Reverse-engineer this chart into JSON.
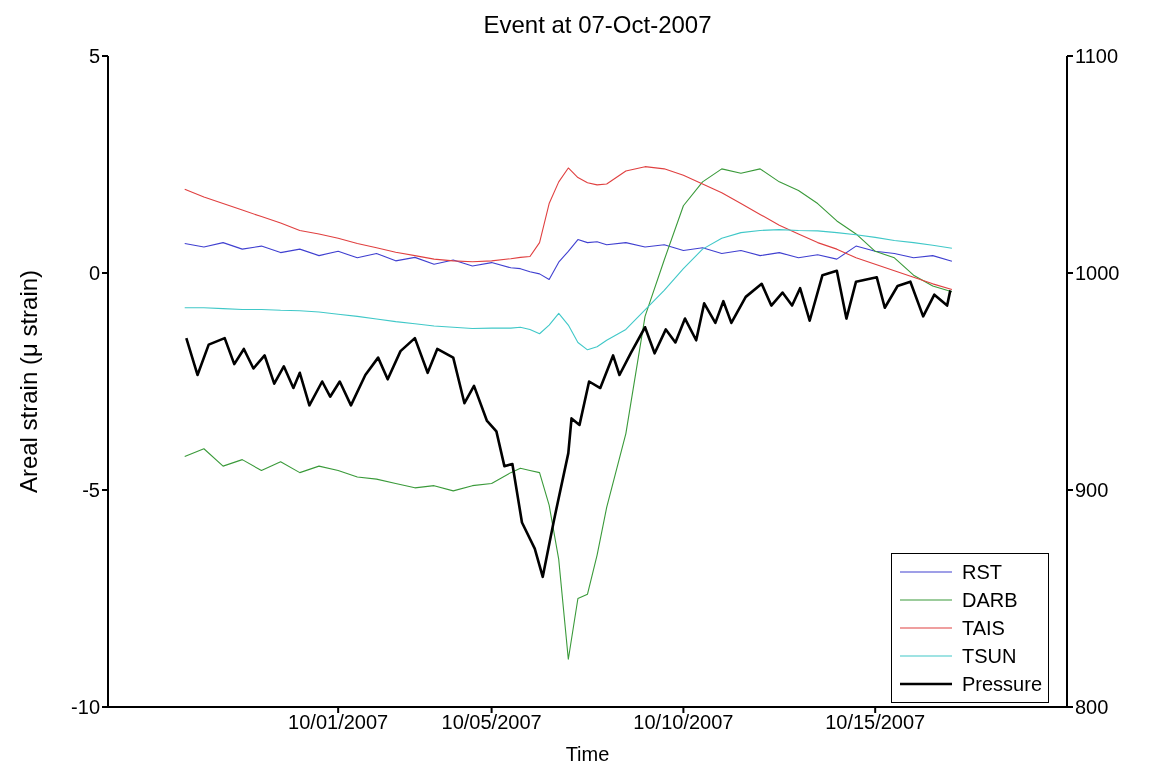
{
  "chart_data": {
    "type": "line",
    "title": "Event at 07-Oct-2007",
    "xlabel": "Time",
    "ylabel": "Areal strain (μ strain)",
    "xlim": [
      "2007-09-25",
      "2007-10-20"
    ],
    "xticks": [
      {
        "value": "2007-10-01",
        "label": "10/01/2007"
      },
      {
        "value": "2007-10-05",
        "label": "10/05/2007"
      },
      {
        "value": "2007-10-10",
        "label": "10/10/2007"
      },
      {
        "value": "2007-10-15",
        "label": "10/15/2007"
      }
    ],
    "ylim": [
      -10,
      5
    ],
    "yticks": [
      -10,
      -5,
      0,
      5
    ],
    "y2lim": [
      800,
      1100
    ],
    "y2ticks": [
      800,
      900,
      1000,
      1100
    ],
    "legend": "bottom right",
    "grid": false,
    "marker": "none",
    "line_style": "solid",
    "x": [
      "2007-09-27T00:00",
      "2007-09-27T12:00",
      "2007-09-28T00:00",
      "2007-09-28T12:00",
      "2007-09-29T00:00",
      "2007-09-29T12:00",
      "2007-09-30T00:00",
      "2007-09-30T12:00",
      "2007-10-01T00:00",
      "2007-10-01T12:00",
      "2007-10-02T00:00",
      "2007-10-02T12:00",
      "2007-10-03T00:00",
      "2007-10-03T12:00",
      "2007-10-04T00:00",
      "2007-10-04T12:00",
      "2007-10-05T00:00",
      "2007-10-05T12:00",
      "2007-10-05T18:00",
      "2007-10-06T00:00",
      "2007-10-06T06:00",
      "2007-10-06T12:00",
      "2007-10-06T18:00",
      "2007-10-07T00:00",
      "2007-10-07T06:00",
      "2007-10-07T12:00",
      "2007-10-07T18:00",
      "2007-10-08T00:00",
      "2007-10-08T12:00",
      "2007-10-09T00:00",
      "2007-10-09T12:00",
      "2007-10-10T00:00",
      "2007-10-10T12:00",
      "2007-10-11T00:00",
      "2007-10-11T12:00",
      "2007-10-12T00:00",
      "2007-10-12T12:00",
      "2007-10-13T00:00",
      "2007-10-13T12:00",
      "2007-10-14T00:00",
      "2007-10-14T12:00",
      "2007-10-15T00:00",
      "2007-10-15T12:00",
      "2007-10-16T00:00",
      "2007-10-16T12:00",
      "2007-10-17T00:00"
    ],
    "series": [
      {
        "name": "RST",
        "color": "#4040d0",
        "values": [
          0.68,
          0.6,
          0.7,
          0.55,
          0.62,
          0.47,
          0.55,
          0.4,
          0.5,
          0.35,
          0.45,
          0.28,
          0.36,
          0.2,
          0.3,
          0.16,
          0.24,
          0.12,
          0.1,
          0.03,
          -0.02,
          -0.15,
          0.25,
          0.5,
          0.77,
          0.7,
          0.72,
          0.65,
          0.7,
          0.6,
          0.65,
          0.52,
          0.58,
          0.45,
          0.52,
          0.4,
          0.47,
          0.35,
          0.42,
          0.32,
          0.62,
          0.5,
          0.45,
          0.35,
          0.4,
          0.27
        ]
      },
      {
        "name": "DARB",
        "color": "#3a9a3a",
        "values": [
          -4.23,
          -4.05,
          -4.45,
          -4.3,
          -4.55,
          -4.35,
          -4.6,
          -4.45,
          -4.55,
          -4.7,
          -4.75,
          -4.85,
          -4.95,
          -4.9,
          -5.02,
          -4.9,
          -4.85,
          -4.6,
          -4.5,
          -4.55,
          -4.6,
          -5.35,
          -6.6,
          -8.9,
          -7.5,
          -7.4,
          -6.5,
          -5.4,
          -3.7,
          -1.0,
          0.3,
          1.55,
          2.1,
          2.4,
          2.3,
          2.4,
          2.1,
          1.9,
          1.6,
          1.2,
          0.9,
          0.5,
          0.35,
          -0.05,
          -0.3,
          -0.43
        ]
      },
      {
        "name": "TAIS",
        "color": "#e04040",
        "values": [
          1.93,
          1.75,
          1.6,
          1.45,
          1.3,
          1.15,
          0.98,
          0.9,
          0.8,
          0.68,
          0.58,
          0.48,
          0.4,
          0.32,
          0.28,
          0.26,
          0.28,
          0.33,
          0.36,
          0.38,
          0.7,
          1.6,
          2.1,
          2.42,
          2.2,
          2.08,
          2.03,
          2.05,
          2.35,
          2.45,
          2.4,
          2.25,
          2.05,
          1.85,
          1.6,
          1.35,
          1.1,
          0.9,
          0.7,
          0.55,
          0.35,
          0.2,
          0.05,
          -0.1,
          -0.25,
          -0.38
        ]
      },
      {
        "name": "TSUN",
        "color": "#40c8c8",
        "values": [
          -0.8,
          -0.8,
          -0.82,
          -0.84,
          -0.84,
          -0.86,
          -0.87,
          -0.9,
          -0.95,
          -1.0,
          -1.06,
          -1.12,
          -1.17,
          -1.22,
          -1.25,
          -1.28,
          -1.27,
          -1.27,
          -1.25,
          -1.3,
          -1.4,
          -1.2,
          -0.93,
          -1.2,
          -1.6,
          -1.77,
          -1.7,
          -1.55,
          -1.3,
          -0.85,
          -0.4,
          0.1,
          0.55,
          0.8,
          0.93,
          0.98,
          1.0,
          0.98,
          0.97,
          0.93,
          0.88,
          0.82,
          0.75,
          0.7,
          0.64,
          0.57
        ]
      },
      {
        "name": "Pressure",
        "color": "#000000",
        "axis": "y2",
        "x": [
          "2007-09-27T01:00",
          "2007-09-27T08:00",
          "2007-09-27T15:00",
          "2007-09-28T01:00",
          "2007-09-28T07:00",
          "2007-09-28T13:00",
          "2007-09-28T19:00",
          "2007-09-29T02:00",
          "2007-09-29T08:00",
          "2007-09-29T14:00",
          "2007-09-29T20:00",
          "2007-09-30T00:00",
          "2007-09-30T06:00",
          "2007-09-30T14:00",
          "2007-09-30T19:00",
          "2007-10-01T01:00",
          "2007-10-01T08:00",
          "2007-10-01T17:00",
          "2007-10-02T01:00",
          "2007-10-02T07:00",
          "2007-10-02T15:00",
          "2007-10-03T00:00",
          "2007-10-03T08:00",
          "2007-10-03T14:00",
          "2007-10-04T00:00",
          "2007-10-04T07:00",
          "2007-10-04T13:00",
          "2007-10-04T21:00",
          "2007-10-05T03:00",
          "2007-10-05T08:00",
          "2007-10-05T13:00",
          "2007-10-05T19:00",
          "2007-10-06T03:00",
          "2007-10-06T08:00",
          "2007-10-06T15:00",
          "2007-10-07T00:00",
          "2007-10-07T02:00",
          "2007-10-07T07:00",
          "2007-10-07T13:00",
          "2007-10-07T20:00",
          "2007-10-08T04:00",
          "2007-10-08T08:00",
          "2007-10-08T15:00",
          "2007-10-09T00:00",
          "2007-10-09T06:00",
          "2007-10-09T13:00",
          "2007-10-09T19:00",
          "2007-10-10T01:00",
          "2007-10-10T08:00",
          "2007-10-10T13:00",
          "2007-10-10T20:00",
          "2007-10-11T01:00",
          "2007-10-11T06:00",
          "2007-10-11T15:00",
          "2007-10-12T01:00",
          "2007-10-12T07:00",
          "2007-10-12T14:00",
          "2007-10-12T20:00",
          "2007-10-13T01:00",
          "2007-10-13T07:00",
          "2007-10-13T15:00",
          "2007-10-14T00:00",
          "2007-10-14T06:00",
          "2007-10-14T12:00",
          "2007-10-15T01:00",
          "2007-10-15T06:00",
          "2007-10-15T14:00",
          "2007-10-15T22:00",
          "2007-10-16T06:00",
          "2007-10-16T13:00",
          "2007-10-16T21:00",
          "2007-10-16T23:00"
        ],
        "values": [
          970,
          953,
          967,
          970,
          958,
          965,
          956,
          962,
          949,
          957,
          947,
          954,
          939,
          950,
          943,
          950,
          939,
          953,
          961,
          951,
          964,
          970,
          954,
          965,
          961,
          940,
          948,
          932,
          927,
          911,
          912,
          885,
          873,
          860,
          886,
          917,
          933,
          930,
          950,
          947,
          962,
          953,
          963,
          975,
          963,
          974,
          968,
          979,
          969,
          986,
          977,
          987,
          977,
          989,
          995,
          985,
          991,
          985,
          993,
          978,
          999,
          1001,
          979,
          996,
          998,
          984,
          994,
          996,
          980,
          990,
          985,
          992
        ]
      }
    ]
  }
}
